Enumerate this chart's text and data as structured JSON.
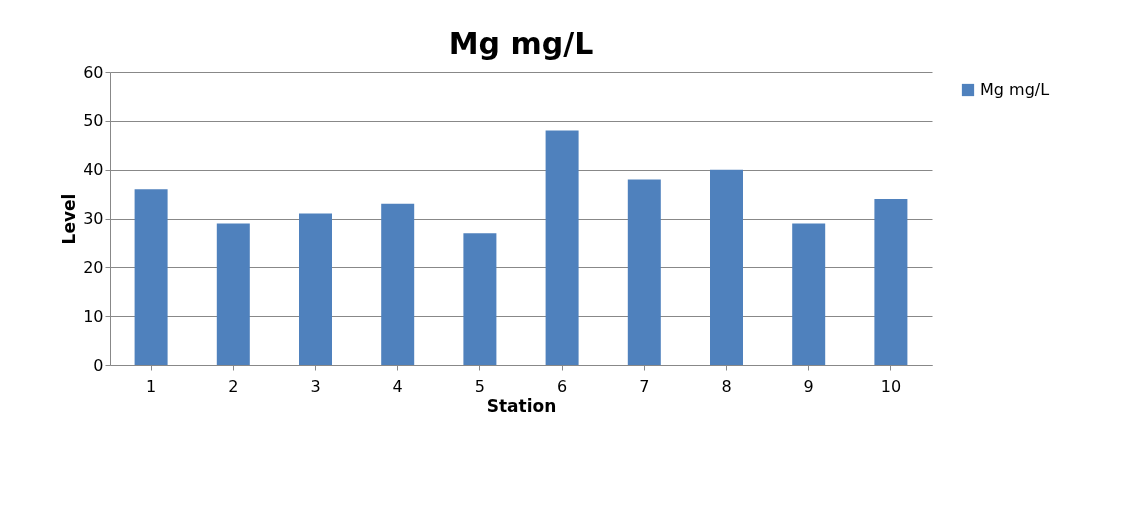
{
  "chart_data": {
    "type": "bar",
    "title": "Mg mg/L",
    "xlabel": "Station",
    "ylabel": "Level",
    "categories": [
      "1",
      "2",
      "3",
      "4",
      "5",
      "6",
      "7",
      "8",
      "9",
      "10"
    ],
    "series": [
      {
        "name": "Mg mg/L",
        "color": "#4f81bd",
        "values": [
          36,
          29,
          31,
          33,
          27,
          48,
          38,
          40,
          29,
          34
        ]
      }
    ],
    "ylim": [
      0,
      60
    ],
    "yticks": [
      0,
      10,
      20,
      30,
      40,
      50,
      60
    ],
    "grid": "y",
    "legend": "right"
  }
}
